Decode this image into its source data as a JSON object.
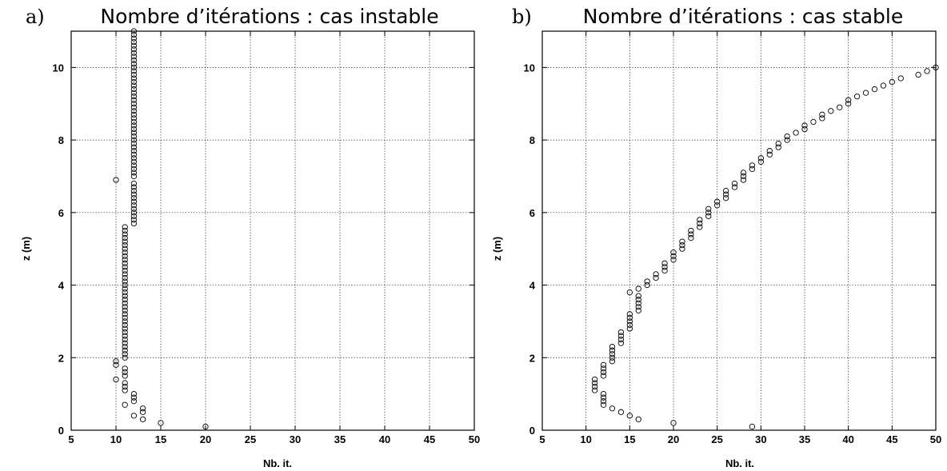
{
  "chart_data": [
    {
      "type": "scatter",
      "panel_label": "a)",
      "title": "Nombre d’itérations : cas instable",
      "xlabel": "Nb. it.",
      "ylabel": "z (m)",
      "xlim": [
        5,
        50
      ],
      "ylim": [
        0,
        11
      ],
      "xticks": [
        5,
        10,
        15,
        20,
        25,
        30,
        35,
        40,
        45,
        50
      ],
      "yticks": [
        0,
        2,
        4,
        6,
        8,
        10
      ],
      "grid": true,
      "marker": "open-circle",
      "points": [
        {
          "x": 20,
          "y": 0.1
        },
        {
          "x": 15,
          "y": 0.2
        },
        {
          "x": 13,
          "y": 0.3
        },
        {
          "x": 12,
          "y": 0.4
        },
        {
          "x": 13,
          "y": 0.5
        },
        {
          "x": 13,
          "y": 0.6
        },
        {
          "x": 11,
          "y": 0.7
        },
        {
          "x": 12,
          "y": 0.8
        },
        {
          "x": 12,
          "y": 0.9
        },
        {
          "x": 12,
          "y": 1.0
        },
        {
          "x": 11,
          "y": 1.1
        },
        {
          "x": 11,
          "y": 1.2
        },
        {
          "x": 11,
          "y": 1.3
        },
        {
          "x": 10,
          "y": 1.4
        },
        {
          "x": 11,
          "y": 1.5
        },
        {
          "x": 11,
          "y": 1.6
        },
        {
          "x": 11,
          "y": 1.7
        },
        {
          "x": 10,
          "y": 1.8
        },
        {
          "x": 10,
          "y": 1.9
        },
        {
          "x": 11,
          "y": 2.0
        },
        {
          "x": 11,
          "y": 2.1
        },
        {
          "x": 11,
          "y": 2.2
        },
        {
          "x": 11,
          "y": 2.3
        },
        {
          "x": 11,
          "y": 2.4
        },
        {
          "x": 11,
          "y": 2.5
        },
        {
          "x": 11,
          "y": 2.6
        },
        {
          "x": 11,
          "y": 2.7
        },
        {
          "x": 11,
          "y": 2.8
        },
        {
          "x": 11,
          "y": 2.9
        },
        {
          "x": 11,
          "y": 3.0
        },
        {
          "x": 11,
          "y": 3.1
        },
        {
          "x": 11,
          "y": 3.2
        },
        {
          "x": 11,
          "y": 3.3
        },
        {
          "x": 11,
          "y": 3.4
        },
        {
          "x": 11,
          "y": 3.5
        },
        {
          "x": 11,
          "y": 3.6
        },
        {
          "x": 11,
          "y": 3.7
        },
        {
          "x": 11,
          "y": 3.8
        },
        {
          "x": 11,
          "y": 3.9
        },
        {
          "x": 11,
          "y": 4.0
        },
        {
          "x": 11,
          "y": 4.1
        },
        {
          "x": 11,
          "y": 4.2
        },
        {
          "x": 11,
          "y": 4.3
        },
        {
          "x": 11,
          "y": 4.4
        },
        {
          "x": 11,
          "y": 4.5
        },
        {
          "x": 11,
          "y": 4.6
        },
        {
          "x": 11,
          "y": 4.7
        },
        {
          "x": 11,
          "y": 4.8
        },
        {
          "x": 11,
          "y": 4.9
        },
        {
          "x": 11,
          "y": 5.0
        },
        {
          "x": 11,
          "y": 5.1
        },
        {
          "x": 11,
          "y": 5.2
        },
        {
          "x": 11,
          "y": 5.3
        },
        {
          "x": 11,
          "y": 5.4
        },
        {
          "x": 11,
          "y": 5.5
        },
        {
          "x": 11,
          "y": 5.6
        },
        {
          "x": 12,
          "y": 5.7
        },
        {
          "x": 12,
          "y": 5.8
        },
        {
          "x": 12,
          "y": 5.9
        },
        {
          "x": 12,
          "y": 6.0
        },
        {
          "x": 12,
          "y": 6.1
        },
        {
          "x": 12,
          "y": 6.2
        },
        {
          "x": 12,
          "y": 6.3
        },
        {
          "x": 12,
          "y": 6.4
        },
        {
          "x": 12,
          "y": 6.5
        },
        {
          "x": 12,
          "y": 6.6
        },
        {
          "x": 12,
          "y": 6.7
        },
        {
          "x": 12,
          "y": 6.8
        },
        {
          "x": 10,
          "y": 6.9
        },
        {
          "x": 12,
          "y": 7.0
        },
        {
          "x": 12,
          "y": 7.1
        },
        {
          "x": 12,
          "y": 7.2
        },
        {
          "x": 12,
          "y": 7.3
        },
        {
          "x": 12,
          "y": 7.4
        },
        {
          "x": 12,
          "y": 7.5
        },
        {
          "x": 12,
          "y": 7.6
        },
        {
          "x": 12,
          "y": 7.7
        },
        {
          "x": 12,
          "y": 7.8
        },
        {
          "x": 12,
          "y": 7.9
        },
        {
          "x": 12,
          "y": 8.0
        },
        {
          "x": 12,
          "y": 8.1
        },
        {
          "x": 12,
          "y": 8.2
        },
        {
          "x": 12,
          "y": 8.3
        },
        {
          "x": 12,
          "y": 8.4
        },
        {
          "x": 12,
          "y": 8.5
        },
        {
          "x": 12,
          "y": 8.6
        },
        {
          "x": 12,
          "y": 8.7
        },
        {
          "x": 12,
          "y": 8.8
        },
        {
          "x": 12,
          "y": 8.9
        },
        {
          "x": 12,
          "y": 9.0
        },
        {
          "x": 12,
          "y": 9.1
        },
        {
          "x": 12,
          "y": 9.2
        },
        {
          "x": 12,
          "y": 9.3
        },
        {
          "x": 12,
          "y": 9.4
        },
        {
          "x": 12,
          "y": 9.5
        },
        {
          "x": 12,
          "y": 9.6
        },
        {
          "x": 12,
          "y": 9.7
        },
        {
          "x": 12,
          "y": 9.8
        },
        {
          "x": 12,
          "y": 9.9
        },
        {
          "x": 12,
          "y": 10.0
        },
        {
          "x": 12,
          "y": 10.1
        },
        {
          "x": 12,
          "y": 10.2
        },
        {
          "x": 12,
          "y": 10.3
        },
        {
          "x": 12,
          "y": 10.4
        },
        {
          "x": 12,
          "y": 10.5
        },
        {
          "x": 12,
          "y": 10.6
        },
        {
          "x": 12,
          "y": 10.7
        },
        {
          "x": 12,
          "y": 10.8
        },
        {
          "x": 12,
          "y": 10.9
        },
        {
          "x": 12,
          "y": 11.0
        }
      ]
    },
    {
      "type": "scatter",
      "panel_label": "b)",
      "title": "Nombre d’itérations : cas stable",
      "xlabel": "Nb. it.",
      "ylabel": "z (m)",
      "xlim": [
        5,
        50
      ],
      "ylim": [
        0,
        11
      ],
      "xticks": [
        5,
        10,
        15,
        20,
        25,
        30,
        35,
        40,
        45,
        50
      ],
      "yticks": [
        0,
        2,
        4,
        6,
        8,
        10
      ],
      "grid": true,
      "marker": "open-circle",
      "points": [
        {
          "x": 29,
          "y": 0.1
        },
        {
          "x": 20,
          "y": 0.2
        },
        {
          "x": 16,
          "y": 0.3
        },
        {
          "x": 15,
          "y": 0.4
        },
        {
          "x": 14,
          "y": 0.5
        },
        {
          "x": 13,
          "y": 0.6
        },
        {
          "x": 12,
          "y": 0.7
        },
        {
          "x": 12,
          "y": 0.8
        },
        {
          "x": 12,
          "y": 0.9
        },
        {
          "x": 12,
          "y": 1.0
        },
        {
          "x": 11,
          "y": 1.1
        },
        {
          "x": 11,
          "y": 1.2
        },
        {
          "x": 11,
          "y": 1.3
        },
        {
          "x": 11,
          "y": 1.4
        },
        {
          "x": 12,
          "y": 1.5
        },
        {
          "x": 12,
          "y": 1.6
        },
        {
          "x": 12,
          "y": 1.7
        },
        {
          "x": 12,
          "y": 1.8
        },
        {
          "x": 13,
          "y": 1.9
        },
        {
          "x": 13,
          "y": 2.0
        },
        {
          "x": 13,
          "y": 2.1
        },
        {
          "x": 13,
          "y": 2.2
        },
        {
          "x": 13,
          "y": 2.3
        },
        {
          "x": 14,
          "y": 2.4
        },
        {
          "x": 14,
          "y": 2.5
        },
        {
          "x": 14,
          "y": 2.6
        },
        {
          "x": 14,
          "y": 2.7
        },
        {
          "x": 15,
          "y": 2.8
        },
        {
          "x": 15,
          "y": 2.9
        },
        {
          "x": 15,
          "y": 3.0
        },
        {
          "x": 15,
          "y": 3.1
        },
        {
          "x": 15,
          "y": 3.2
        },
        {
          "x": 16,
          "y": 3.3
        },
        {
          "x": 16,
          "y": 3.4
        },
        {
          "x": 16,
          "y": 3.5
        },
        {
          "x": 16,
          "y": 3.6
        },
        {
          "x": 16,
          "y": 3.7
        },
        {
          "x": 15,
          "y": 3.8
        },
        {
          "x": 16,
          "y": 3.9
        },
        {
          "x": 17,
          "y": 4.0
        },
        {
          "x": 17,
          "y": 4.1
        },
        {
          "x": 18,
          "y": 4.2
        },
        {
          "x": 18,
          "y": 4.3
        },
        {
          "x": 19,
          "y": 4.4
        },
        {
          "x": 19,
          "y": 4.5
        },
        {
          "x": 19,
          "y": 4.6
        },
        {
          "x": 20,
          "y": 4.7
        },
        {
          "x": 20,
          "y": 4.8
        },
        {
          "x": 20,
          "y": 4.9
        },
        {
          "x": 21,
          "y": 5.0
        },
        {
          "x": 21,
          "y": 5.1
        },
        {
          "x": 21,
          "y": 5.2
        },
        {
          "x": 22,
          "y": 5.3
        },
        {
          "x": 22,
          "y": 5.4
        },
        {
          "x": 22,
          "y": 5.5
        },
        {
          "x": 23,
          "y": 5.6
        },
        {
          "x": 23,
          "y": 5.7
        },
        {
          "x": 23,
          "y": 5.8
        },
        {
          "x": 24,
          "y": 5.9
        },
        {
          "x": 24,
          "y": 6.0
        },
        {
          "x": 24,
          "y": 6.1
        },
        {
          "x": 25,
          "y": 6.2
        },
        {
          "x": 25,
          "y": 6.3
        },
        {
          "x": 26,
          "y": 6.4
        },
        {
          "x": 26,
          "y": 6.5
        },
        {
          "x": 26,
          "y": 6.6
        },
        {
          "x": 27,
          "y": 6.7
        },
        {
          "x": 27,
          "y": 6.8
        },
        {
          "x": 28,
          "y": 6.9
        },
        {
          "x": 28,
          "y": 7.0
        },
        {
          "x": 28,
          "y": 7.1
        },
        {
          "x": 29,
          "y": 7.2
        },
        {
          "x": 29,
          "y": 7.3
        },
        {
          "x": 30,
          "y": 7.4
        },
        {
          "x": 30,
          "y": 7.5
        },
        {
          "x": 31,
          "y": 7.6
        },
        {
          "x": 31,
          "y": 7.7
        },
        {
          "x": 32,
          "y": 7.8
        },
        {
          "x": 32,
          "y": 7.9
        },
        {
          "x": 33,
          "y": 8.0
        },
        {
          "x": 33,
          "y": 8.1
        },
        {
          "x": 34,
          "y": 8.2
        },
        {
          "x": 35,
          "y": 8.3
        },
        {
          "x": 35,
          "y": 8.4
        },
        {
          "x": 36,
          "y": 8.5
        },
        {
          "x": 37,
          "y": 8.6
        },
        {
          "x": 37,
          "y": 8.7
        },
        {
          "x": 38,
          "y": 8.8
        },
        {
          "x": 39,
          "y": 8.9
        },
        {
          "x": 40,
          "y": 9.0
        },
        {
          "x": 40,
          "y": 9.1
        },
        {
          "x": 41,
          "y": 9.2
        },
        {
          "x": 42,
          "y": 9.3
        },
        {
          "x": 43,
          "y": 9.4
        },
        {
          "x": 44,
          "y": 9.5
        },
        {
          "x": 45,
          "y": 9.6
        },
        {
          "x": 46,
          "y": 9.7
        },
        {
          "x": 48,
          "y": 9.8
        },
        {
          "x": 49,
          "y": 9.9
        },
        {
          "x": 50,
          "y": 10.0
        }
      ]
    }
  ]
}
